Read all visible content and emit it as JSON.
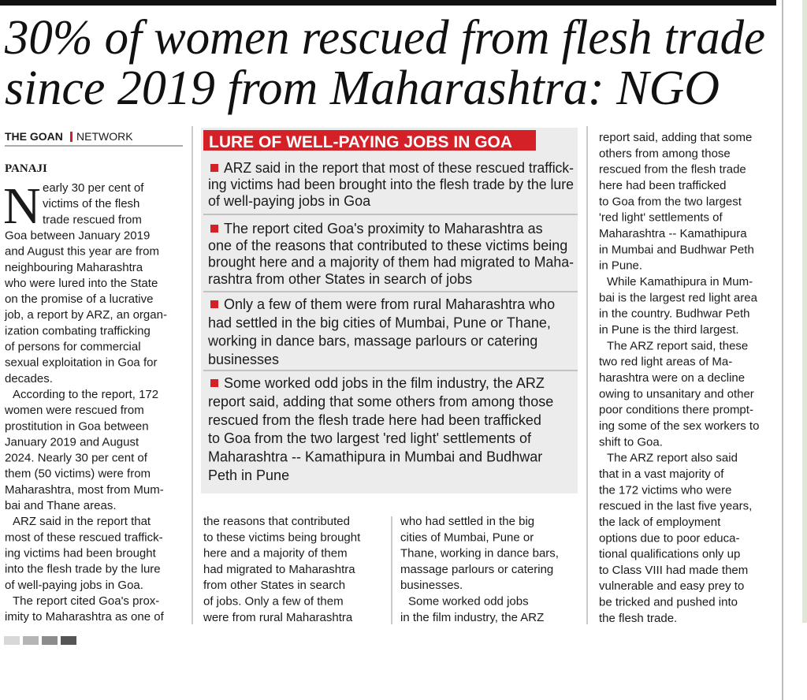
{
  "headline": [
    "30% of women rescued from flesh trade",
    "since 2019 from Maharashtra: NGO"
  ],
  "byline": {
    "publication": "THE GOAN",
    "desk": "NETWORK"
  },
  "dateline": "PANAJI",
  "drop_cap": "N",
  "column_1": [
    [
      "early 30 per cent of",
      "victims of the flesh",
      "trade rescued from",
      "Goa between January 2019",
      "and August this year are from",
      "neighbouring Maharashtra",
      "who were lured into the State",
      "on the promise of a lucrative",
      "job, a report by ARZ, an organ-",
      "ization combating trafficking",
      "of persons for commercial",
      "sexual exploitation in Goa for",
      "decades."
    ],
    [
      "According to the report, 172",
      "women were rescued from",
      "prostitution in Goa between",
      "January 2019 and August",
      "2024. Nearly 30 per cent of",
      "them (50 victims) were from",
      "Maharashtra, most from Mum-",
      "bai and Thane areas."
    ],
    [
      "ARZ said in the report that",
      "most of these rescued traffick-",
      "ing victims had been brought",
      "into the flesh trade by the lure",
      "of well-paying jobs in Goa."
    ],
    [
      "The report cited Goa's prox-",
      "imity to Maharashtra as one of"
    ]
  ],
  "box": {
    "title": "LURE OF WELL-PAYING JOBS IN GOA",
    "bullets": [
      [
        "ARZ said in the report that most of these rescued traffick-",
        "ing victims had been brought into the flesh trade by the lure",
        "of well-paying jobs in Goa"
      ],
      [
        "The report cited Goa's proximity to Maharashtra as",
        "one of the reasons that contributed to these victims being",
        "brought here and a majority of them had migrated to Maha-",
        "rashtra from other States in search of jobs"
      ],
      [
        "Only a few of them were from rural Maharashtra who",
        "had settled in the big cities of Mumbai, Pune or Thane,",
        "working in dance bars, massage parlours or catering",
        "businesses"
      ],
      [
        "Some worked odd jobs in the film industry, the ARZ",
        "report said, adding that some others from among those",
        "rescued from the flesh trade here had been trafficked",
        "to Goa from the two largest 'red light' settlements of",
        "Maharashtra -- Kamathipura in Mumbai and Budhwar",
        "Peth in Pune"
      ]
    ]
  },
  "column_2": [
    [
      "the reasons that contributed",
      "to these victims being brought",
      "here and a majority of them",
      "had migrated to Maharashtra",
      "from other States in search",
      "of jobs. Only a few of them",
      "were from rural Maharashtra"
    ]
  ],
  "column_3": [
    [
      "who had settled in the big",
      "cities of Mumbai, Pune or",
      "Thane, working in dance bars,",
      "massage parlours or catering",
      "businesses."
    ],
    [
      "Some worked odd jobs",
      "in the film industry, the ARZ"
    ]
  ],
  "column_4": [
    [
      "report said, adding that some",
      "others from among those",
      "rescued from the flesh trade",
      "here had been trafficked",
      "to Goa from the two largest",
      "'red light' settlements of",
      "Maharashtra -- Kamathipura",
      "in Mumbai and Budhwar Peth",
      "in Pune."
    ],
    [
      "While Kamathipura in Mum-",
      "bai is the largest red light area",
      "in the country. Budhwar Peth",
      "in Pune is the third largest."
    ],
    [
      "The ARZ report said, these",
      "two red light areas of Ma-",
      "harashtra were on a decline",
      "owing to unsanitary and other",
      "poor conditions there prompt-",
      "ing some of the sex workers to",
      "shift to Goa."
    ],
    [
      "The ARZ report also said",
      "that in a vast majority of",
      "the 172 victims who were",
      "rescued in the last five years,",
      "the lack of employment",
      "options due to poor educa-",
      "tional qualifications only up",
      "to Class VIII had made them",
      "vulnerable and easy prey to",
      "be tricked and pushed into",
      "the flesh trade."
    ]
  ]
}
